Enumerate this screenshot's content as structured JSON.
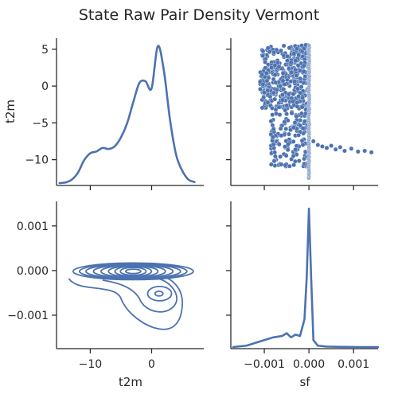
{
  "title": "State Raw Pair Density Vermont",
  "chart_data": {
    "type": "pairplot",
    "variables": [
      "t2m",
      "sf"
    ],
    "panels": {
      "t2m_kde": {
        "type": "line",
        "xlim": [
          -15.5,
          8.5
        ],
        "x": [
          -15,
          -14,
          -13,
          -12,
          -11,
          -10,
          -9,
          -8,
          -7,
          -6,
          -5,
          -4,
          -3,
          -2,
          -1,
          0,
          1,
          2,
          3,
          4,
          5,
          6,
          7
        ],
        "y": [
          0.0,
          0.002,
          0.01,
          0.03,
          0.065,
          0.085,
          0.09,
          0.1,
          0.097,
          0.105,
          0.13,
          0.17,
          0.23,
          0.285,
          0.29,
          0.27,
          0.39,
          0.32,
          0.18,
          0.08,
          0.035,
          0.01,
          0.003
        ]
      },
      "scatter": {
        "type": "scatter",
        "xlabel": "",
        "ylabel": "t2m",
        "xlim": [
          -0.00175,
          0.00155
        ],
        "ylim": [
          -13.5,
          6.5
        ],
        "yticks": [
          "5",
          "0",
          "−5",
          "−10"
        ],
        "ytick_values": [
          5,
          0,
          -5,
          -10
        ],
        "cloud": {
          "x_range": [
            -0.001,
            0.0
          ],
          "y_range": [
            -11,
            5
          ]
        },
        "column": {
          "x": 0.0,
          "y_range": [
            -12.5,
            5.5
          ]
        },
        "tail": [
          [
            0.0001,
            -7.5
          ],
          [
            0.0002,
            -8.0
          ],
          [
            0.0003,
            -8.2
          ],
          [
            0.0004,
            -8.4
          ],
          [
            0.0005,
            -8.1
          ],
          [
            0.0006,
            -8.6
          ],
          [
            0.0007,
            -8.3
          ],
          [
            0.0008,
            -8.8
          ],
          [
            0.00095,
            -8.5
          ],
          [
            0.0011,
            -8.9
          ],
          [
            0.00125,
            -8.8
          ],
          [
            0.0014,
            -9.0
          ]
        ]
      },
      "contour": {
        "type": "contour",
        "xlim": [
          -15.5,
          8.5
        ],
        "ylim": [
          -0.00175,
          0.00155
        ],
        "yticks": [
          "0.001",
          "0.000",
          "−0.001"
        ],
        "ytick_values": [
          0.001,
          0.0,
          -0.001
        ]
      },
      "sf_kde": {
        "type": "line",
        "xlim": [
          -0.00175,
          0.00155
        ],
        "x": [
          -0.0017,
          -0.0014,
          -0.0012,
          -0.001,
          -0.0008,
          -0.0006,
          -0.0005,
          -0.0004,
          -0.0003,
          -0.0002,
          -0.0001,
          -5e-05,
          0.0,
          5e-05,
          0.0001,
          0.0002,
          0.0004,
          0.0008,
          0.0012,
          0.00155
        ],
        "y": [
          0.0,
          0.01,
          0.03,
          0.05,
          0.07,
          0.08,
          0.1,
          0.07,
          0.09,
          0.08,
          0.2,
          0.5,
          1.0,
          0.5,
          0.05,
          0.01,
          0.003,
          0.001,
          0.0,
          0.0
        ]
      }
    },
    "x_axes": [
      {
        "label": "t2m",
        "ticks": [
          "−10",
          "0"
        ],
        "tick_values": [
          -10,
          0
        ]
      },
      {
        "label": "sf",
        "ticks": [
          "−0.001",
          "0.000",
          "0.001"
        ],
        "tick_values": [
          -0.001,
          0.0,
          0.001
        ]
      }
    ]
  }
}
